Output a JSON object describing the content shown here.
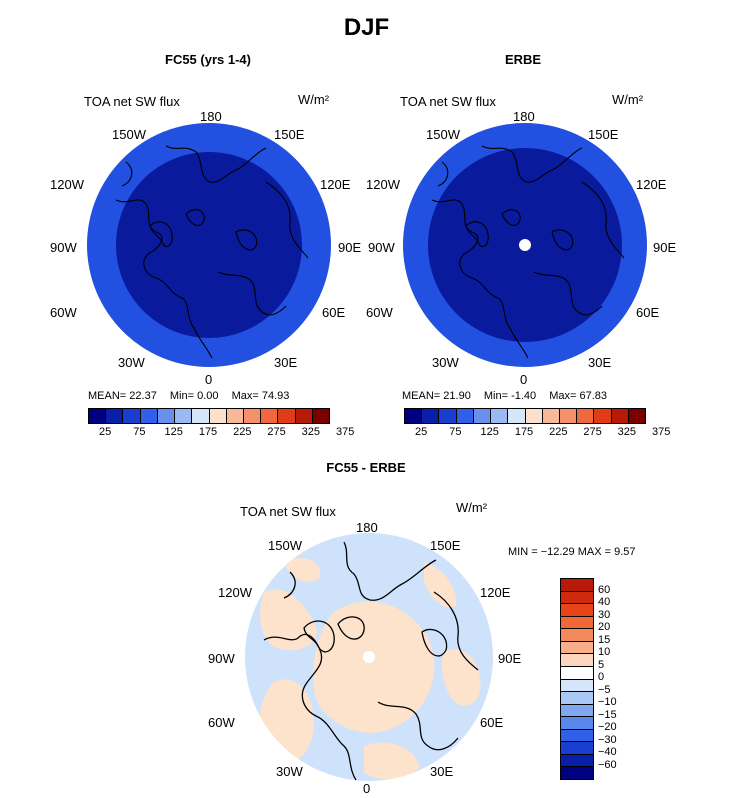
{
  "title": "DJF",
  "panels": [
    {
      "title": "FC55 (yrs 1-4)",
      "var_label": "TOA net SW flux",
      "units": "W/m²",
      "stats": {
        "mean_label": "MEAN=",
        "mean": "22.37",
        "min_label": "Min=",
        "min": "0.00",
        "max_label": "Max=",
        "max": "74.93"
      }
    },
    {
      "title": "ERBE",
      "var_label": "TOA net SW flux",
      "units": "W/m²",
      "stats": {
        "mean_label": "MEAN=",
        "mean": "21.90",
        "min_label": "Min=",
        "min": "-1.40",
        "max_label": "Max=",
        "max": "67.83"
      }
    }
  ],
  "diff_panel": {
    "title": "FC55 - ERBE",
    "var_label": "TOA net SW flux",
    "units": "W/m²",
    "minmax": "MIN = −12.29 MAX =    9.57"
  },
  "lon_labels": [
    "180",
    "150E",
    "120E",
    "90E",
    "60E",
    "30E",
    "0",
    "30W",
    "60W",
    "90W",
    "120W",
    "150W"
  ],
  "abs_colorbar": {
    "colors": [
      "#000080",
      "#0a1fa8",
      "#1a3fd0",
      "#3060e8",
      "#6a90ee",
      "#9ab8f2",
      "#d6e6fa",
      "#fde0cc",
      "#f8b89a",
      "#f4906a",
      "#f06840",
      "#e03c18",
      "#b81a0a",
      "#7a0000"
    ],
    "ticks": [
      "25",
      "75",
      "125",
      "175",
      "225",
      "275",
      "325",
      "375"
    ]
  },
  "diff_colorbar": {
    "colors": [
      "#b81a0a",
      "#d02a0e",
      "#e84418",
      "#f06838",
      "#f48a5a",
      "#f8ae88",
      "#fcd4c0",
      "#ffffff",
      "#d6e6fa",
      "#aac8f6",
      "#80a8f2",
      "#5888ec",
      "#3060e8",
      "#1a3fd0",
      "#0a1fa8",
      "#000080"
    ],
    "ticks": [
      "60",
      "40",
      "30",
      "20",
      "15",
      "10",
      "5",
      "0",
      "−5",
      "−10",
      "−15",
      "−20",
      "−30",
      "−40",
      "−60"
    ]
  },
  "map_colors": {
    "outer": "#2250e0",
    "inner": "#0a1a9c",
    "diff_base": "#cfe2fb",
    "diff_pos": "#fde2cc"
  }
}
